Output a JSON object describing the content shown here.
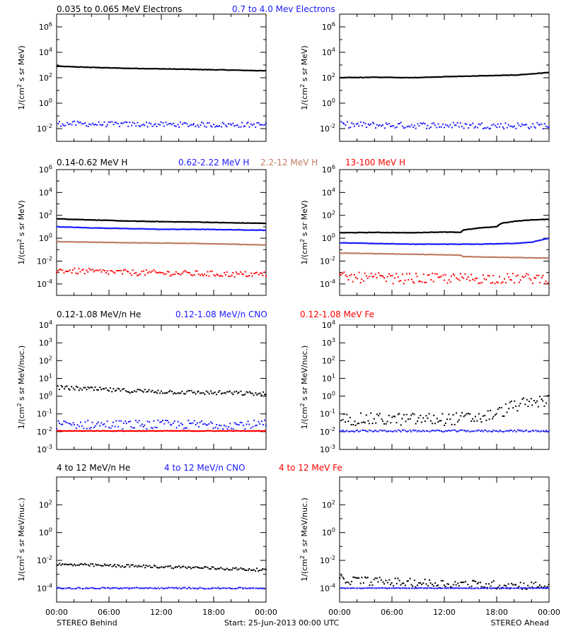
{
  "colors": {
    "black": "#000000",
    "blue": "#1a1aff",
    "tan": "#c07d63",
    "red": "#ff0000"
  },
  "footer": {
    "left": "STEREO Behind",
    "center": "Start: 25-Jun-2013 00:00 UTC",
    "right": "STEREO Ahead"
  },
  "x_ticks": [
    "00:00",
    "06:00",
    "12:00",
    "18:00",
    "00:00"
  ],
  "chart_data": [
    {
      "row": 1,
      "type": "scatter",
      "title_parts": [
        {
          "text": "0.035 to 0.065 MeV Electrons",
          "color": "black"
        },
        {
          "text": "0.7 to 4.0 Mev Electrons",
          "color": "blue"
        }
      ],
      "ylabel_html": "1/(cm<sup>2</sup> s sr MeV)",
      "ylabel": "1/(cm2 s sr MeV)",
      "yscale": "log",
      "ylim_exp": [
        -3,
        7
      ],
      "yticks": [
        {
          "exp": 6,
          "label": "10",
          "sup": "6"
        },
        {
          "exp": 4,
          "label": "10",
          "sup": "4"
        },
        {
          "exp": 2,
          "label": "10",
          "sup": "2"
        },
        {
          "exp": 0,
          "label": "10",
          "sup": "0"
        },
        {
          "exp": -2,
          "label": "10",
          "sup": "-2"
        }
      ],
      "xlim_hours": [
        0,
        24
      ],
      "panels": [
        {
          "name": "STEREO Behind",
          "series": [
            {
              "color": "black",
              "style": "line",
              "x": [
                0,
                4,
                8,
                12,
                16,
                20,
                24
              ],
              "y": [
                800.0,
                650.0,
                550.0,
                500.0,
                450.0,
                400.0,
                350.0
              ]
            },
            {
              "color": "blue",
              "style": "dots",
              "x": [
                0,
                6,
                12,
                18,
                24
              ],
              "y": [
                0.025,
                0.022,
                0.021,
                0.02,
                0.02
              ],
              "scatter": 0.2
            }
          ]
        },
        {
          "name": "STEREO Ahead",
          "series": [
            {
              "color": "black",
              "style": "line",
              "x": [
                0,
                4,
                8,
                12,
                16,
                20,
                22,
                24
              ],
              "y": [
                100.0,
                110.0,
                100.0,
                120.0,
                140.0,
                160.0,
                200.0,
                260.0
              ]
            },
            {
              "color": "blue",
              "style": "dots",
              "x": [
                0,
                6,
                12,
                18,
                24
              ],
              "y": [
                0.02,
                0.018,
                0.018,
                0.017,
                0.017
              ],
              "scatter": 0.25
            }
          ]
        }
      ]
    },
    {
      "row": 2,
      "type": "scatter",
      "title_parts": [
        {
          "text": "0.14-0.62 MeV H",
          "color": "black"
        },
        {
          "text": "0.62-2.22 MeV H",
          "color": "blue"
        },
        {
          "text": "2.2-12 MeV H",
          "color": "tan"
        },
        {
          "text": "13-100 MeV H",
          "color": "red"
        }
      ],
      "ylabel_html": "1/(cm<sup>2</sup> s sr MeV)",
      "ylabel": "1/(cm2 s sr MeV)",
      "yscale": "log",
      "ylim_exp": [
        -5,
        6
      ],
      "yticks": [
        {
          "exp": 6,
          "label": "10",
          "sup": "6"
        },
        {
          "exp": 4,
          "label": "10",
          "sup": "4"
        },
        {
          "exp": 2,
          "label": "10",
          "sup": "2"
        },
        {
          "exp": 0,
          "label": "10",
          "sup": "0"
        },
        {
          "exp": -2,
          "label": "10",
          "sup": "-2"
        },
        {
          "exp": -4,
          "label": "10",
          "sup": "-4"
        }
      ],
      "xlim_hours": [
        0,
        24
      ],
      "panels": [
        {
          "name": "STEREO Behind",
          "series": [
            {
              "color": "black",
              "style": "line",
              "x": [
                0,
                4,
                8,
                12,
                16,
                20,
                24
              ],
              "y": [
                50,
                40,
                32,
                28,
                26,
                22,
                20
              ]
            },
            {
              "color": "blue",
              "style": "line",
              "x": [
                0,
                4,
                8,
                12,
                16,
                20,
                24
              ],
              "y": [
                10,
                8,
                7,
                6,
                6,
                5.5,
                5
              ]
            },
            {
              "color": "tan",
              "style": "line",
              "x": [
                0,
                4,
                8,
                12,
                16,
                20,
                24
              ],
              "y": [
                0.5,
                0.45,
                0.4,
                0.38,
                0.35,
                0.3,
                0.25
              ]
            },
            {
              "color": "red",
              "style": "dots",
              "x": [
                0,
                4,
                8,
                12,
                16,
                20,
                24
              ],
              "y": [
                0.0015,
                0.0012,
                0.001,
                0.0009,
                0.0008,
                0.0007,
                0.0007
              ],
              "scatter": 0.25
            }
          ]
        },
        {
          "name": "STEREO Ahead",
          "series": [
            {
              "color": "black",
              "style": "line",
              "x": [
                0,
                4,
                8,
                12,
                14,
                14.1,
                16,
                18,
                18.5,
                20,
                22,
                24
              ],
              "y": [
                3,
                3.2,
                3,
                3.5,
                3.2,
                5,
                8,
                10,
                20,
                30,
                40,
                45
              ]
            },
            {
              "color": "blue",
              "style": "line",
              "x": [
                0,
                4,
                8,
                12,
                16,
                20,
                22,
                24
              ],
              "y": [
                0.4,
                0.35,
                0.3,
                0.3,
                0.3,
                0.35,
                0.45,
                1.0
              ]
            },
            {
              "color": "tan",
              "style": "line",
              "x": [
                0,
                4,
                8,
                12,
                14,
                14.1,
                18,
                24
              ],
              "y": [
                0.05,
                0.045,
                0.04,
                0.035,
                0.033,
                0.025,
                0.022,
                0.018
              ]
            },
            {
              "color": "red",
              "style": "dots",
              "x": [
                0,
                6,
                12,
                18,
                24
              ],
              "y": [
                0.0004,
                0.0003,
                0.0003,
                0.0003,
                0.0003
              ],
              "scatter": 0.45
            }
          ]
        }
      ]
    },
    {
      "row": 3,
      "type": "scatter",
      "title_parts": [
        {
          "text": "0.12-1.08 MeV/n He",
          "color": "black"
        },
        {
          "text": "0.12-1.08 MeV/n CNO",
          "color": "blue"
        },
        {
          "text": "0.12-1.08 MeV Fe",
          "color": "red"
        }
      ],
      "ylabel_html": "1/(cm<sup>2</sup> s sr MeV/nuc.)",
      "ylabel": "1/(cm2 s sr MeV/nuc.)",
      "yscale": "log",
      "ylim_exp": [
        -3,
        4
      ],
      "yticks": [
        {
          "exp": 4,
          "label": "10",
          "sup": "4"
        },
        {
          "exp": 3,
          "label": "10",
          "sup": "3"
        },
        {
          "exp": 2,
          "label": "10",
          "sup": "2"
        },
        {
          "exp": 1,
          "label": "10",
          "sup": "1"
        },
        {
          "exp": 0,
          "label": "10",
          "sup": "0"
        },
        {
          "exp": -1,
          "label": "10",
          "sup": "-1"
        },
        {
          "exp": -2,
          "label": "10",
          "sup": "-2"
        },
        {
          "exp": -3,
          "label": "10",
          "sup": "-3"
        }
      ],
      "xlim_hours": [
        0,
        24
      ],
      "panels": [
        {
          "name": "STEREO Behind",
          "series": [
            {
              "color": "black",
              "style": "dots",
              "x": [
                0,
                4,
                8,
                12,
                16,
                20,
                24
              ],
              "y": [
                3.0,
                2.5,
                2.0,
                1.8,
                1.6,
                1.5,
                1.3
              ],
              "scatter": 0.12
            },
            {
              "color": "blue",
              "style": "dots",
              "x": [
                0,
                6,
                12,
                18,
                24
              ],
              "y": [
                0.025,
                0.025,
                0.025,
                0.025,
                0.025
              ],
              "scatter": 0.25
            },
            {
              "color": "red",
              "style": "line",
              "x": [
                0,
                24
              ],
              "y": [
                0.011,
                0.011
              ]
            }
          ]
        },
        {
          "name": "STEREO Ahead",
          "series": [
            {
              "color": "black",
              "style": "dots",
              "x": [
                0,
                6,
                12,
                16,
                18,
                20,
                22,
                24
              ],
              "y": [
                0.05,
                0.05,
                0.05,
                0.06,
                0.1,
                0.3,
                0.4,
                0.6
              ],
              "scatter": 0.35
            },
            {
              "color": "blue",
              "style": "dots",
              "x": [
                0,
                12,
                24
              ],
              "y": [
                0.011,
                0.011,
                0.011
              ],
              "scatter": 0.05
            }
          ]
        }
      ]
    },
    {
      "row": 4,
      "type": "scatter",
      "title_parts": [
        {
          "text": "4 to 12 MeV/n He",
          "color": "black"
        },
        {
          "text": "4 to 12 MeV/n CNO",
          "color": "blue"
        },
        {
          "text": "4 to 12 MeV Fe",
          "color": "red"
        }
      ],
      "ylabel_html": "1/(cm<sup>2</sup> s sr MeV/nuc.)",
      "ylabel": "1/(cm2 s sr MeV/nuc.)",
      "yscale": "log",
      "ylim_exp": [
        -5,
        4
      ],
      "yticks": [
        {
          "exp": 2,
          "label": "10",
          "sup": "2"
        },
        {
          "exp": 0,
          "label": "10",
          "sup": "0"
        },
        {
          "exp": -2,
          "label": "10",
          "sup": "-2"
        },
        {
          "exp": -4,
          "label": "10",
          "sup": "-4"
        }
      ],
      "xlim_hours": [
        0,
        24
      ],
      "panels": [
        {
          "name": "STEREO Behind",
          "series": [
            {
              "color": "black",
              "style": "dots",
              "x": [
                0,
                4,
                8,
                12,
                16,
                20,
                24
              ],
              "y": [
                0.005,
                0.0045,
                0.004,
                0.0035,
                0.003,
                0.0025,
                0.002
              ],
              "scatter": 0.1
            },
            {
              "color": "blue",
              "style": "dots",
              "x": [
                0,
                12,
                24
              ],
              "y": [
                0.0001,
                0.0001,
                0.0001
              ],
              "scatter": 0.05
            }
          ]
        },
        {
          "name": "STEREO Ahead",
          "series": [
            {
              "color": "black",
              "style": "dots",
              "x": [
                0,
                8,
                16,
                24
              ],
              "y": [
                0.0004,
                0.00025,
                0.00018,
                0.00015
              ],
              "scatter": 0.3
            },
            {
              "color": "blue",
              "style": "dots",
              "x": [
                0,
                24
              ],
              "y": [
                0.0001,
                0.0001
              ],
              "scatter": 0.02
            }
          ]
        }
      ]
    }
  ]
}
